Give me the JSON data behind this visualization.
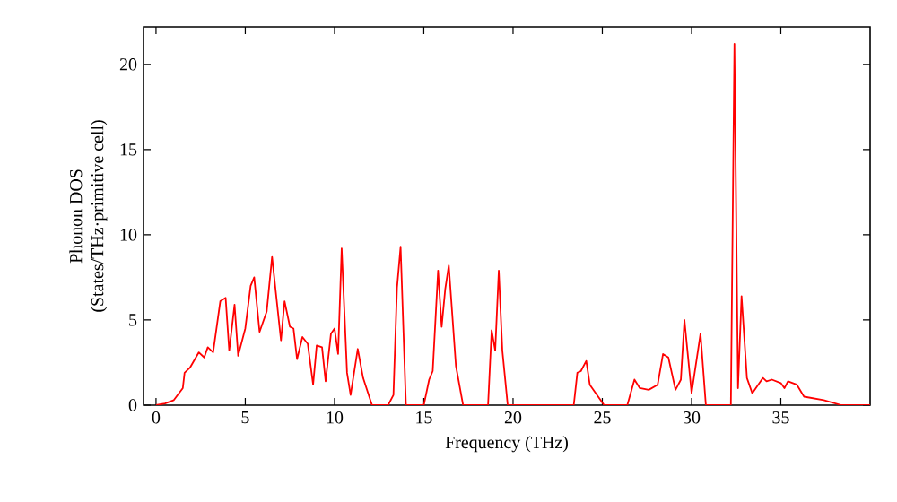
{
  "chart_data": {
    "type": "line",
    "xlabel": "Frequency (THz)",
    "ylabel": "Phonon DOS\n(States/THz·primitive cell)",
    "xlim": [
      -0.7,
      40
    ],
    "ylim": [
      0,
      22.2
    ],
    "xticks": [
      0,
      5,
      10,
      15,
      20,
      25,
      30,
      35
    ],
    "yticks": [
      0,
      5,
      10,
      15,
      20
    ],
    "marker": "none",
    "line_style": "solid",
    "series": [
      {
        "color": "#ff0000",
        "x": [
          0,
          0.5,
          1,
          1.5,
          1.6,
          1.9,
          2.4,
          2.7,
          2.9,
          3.2,
          3.6,
          3.9,
          4.1,
          4.4,
          4.6,
          5.0,
          5.3,
          5.5,
          5.8,
          6.2,
          6.5,
          7.0,
          7.2,
          7.5,
          7.7,
          7.9,
          8.2,
          8.5,
          8.8,
          9.0,
          9.3,
          9.5,
          9.8,
          10.0,
          10.2,
          10.4,
          10.7,
          10.9,
          11.3,
          11.6,
          12.1,
          13.0,
          13.3,
          13.5,
          13.7,
          14.0,
          15.0,
          15.3,
          15.5,
          15.8,
          16.0,
          16.2,
          16.4,
          16.8,
          17.2,
          18.6,
          18.8,
          19.0,
          19.2,
          19.4,
          19.7,
          23.4,
          23.6,
          23.8,
          24.1,
          24.3,
          24.9,
          25.1,
          26.4,
          26.8,
          27.1,
          27.6,
          28.1,
          28.4,
          28.7,
          29.1,
          29.4,
          29.6,
          30.0,
          30.5,
          30.8,
          32.2,
          32.4,
          32.6,
          32.8,
          33.1,
          33.4,
          33.6,
          34.0,
          34.2,
          34.5,
          35.0,
          35.2,
          35.4,
          35.9,
          36.3,
          37.4,
          38.4,
          40.0
        ],
        "values": [
          0,
          0.1,
          0.3,
          1.0,
          1.9,
          2.2,
          3.1,
          2.8,
          3.4,
          3.1,
          6.1,
          6.3,
          3.2,
          5.9,
          2.9,
          4.5,
          7.0,
          7.5,
          4.3,
          5.5,
          8.7,
          3.8,
          6.1,
          4.6,
          4.5,
          2.7,
          4.0,
          3.6,
          1.2,
          3.5,
          3.4,
          1.4,
          4.2,
          4.5,
          3.0,
          9.2,
          1.9,
          0.6,
          3.3,
          1.6,
          0,
          0,
          0.6,
          6.9,
          9.3,
          0,
          0,
          1.5,
          2.0,
          7.9,
          4.6,
          6.8,
          8.2,
          2.3,
          0,
          0,
          4.4,
          3.2,
          7.9,
          3.2,
          0,
          0,
          1.9,
          2.0,
          2.6,
          1.2,
          0.3,
          0,
          0,
          1.5,
          1.0,
          0.9,
          1.2,
          3.0,
          2.8,
          0.9,
          1.5,
          5.0,
          0.7,
          4.2,
          0,
          0,
          21.2,
          1.0,
          6.4,
          1.6,
          0.7,
          1.0,
          1.6,
          1.4,
          1.5,
          1.3,
          1.0,
          1.4,
          1.2,
          0.5,
          0.3,
          0,
          0
        ]
      }
    ]
  }
}
